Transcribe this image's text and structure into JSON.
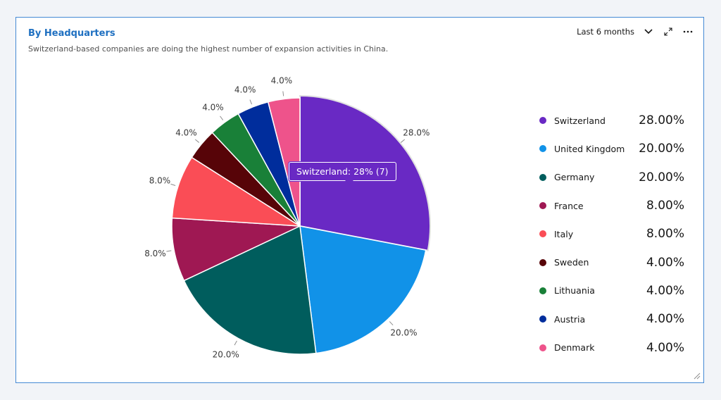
{
  "header": {
    "title": "By Headquarters",
    "subtitle": "Switzerland-based companies are doing the highest number of expansion activities in China.",
    "period": "Last 6 months",
    "icons": [
      "chevron-down-icon",
      "expand-icon",
      "overflow-menu-icon"
    ]
  },
  "tooltip": {
    "text": "Switzerland: 28% (7)"
  },
  "chart_data": {
    "type": "pie",
    "title": "By Headquarters",
    "categories": [
      "Switzerland",
      "United Kingdom",
      "Germany",
      "France",
      "Italy",
      "Sweden",
      "Lithuania",
      "Austria",
      "Denmark"
    ],
    "values": [
      28,
      20,
      20,
      8,
      8,
      4,
      4,
      4,
      4
    ],
    "counts_shown": {
      "Switzerland": 7
    },
    "slice_labels": [
      "28.0%",
      "20.0%",
      "20.0%",
      "8.0%",
      "8.0%",
      "4.0%",
      "4.0%",
      "4.0%",
      "4.0%"
    ],
    "legend_values": [
      "28.00%",
      "20.00%",
      "20.00%",
      "8.00%",
      "8.00%",
      "4.00%",
      "4.00%",
      "4.00%",
      "4.00%"
    ],
    "colors": [
      "#6929c4",
      "#1192e8",
      "#005d5d",
      "#9f1853",
      "#fa4d56",
      "#570408",
      "#198038",
      "#002d9c",
      "#ee538b"
    ],
    "legend_position": "right",
    "highlighted": "Switzerland"
  }
}
